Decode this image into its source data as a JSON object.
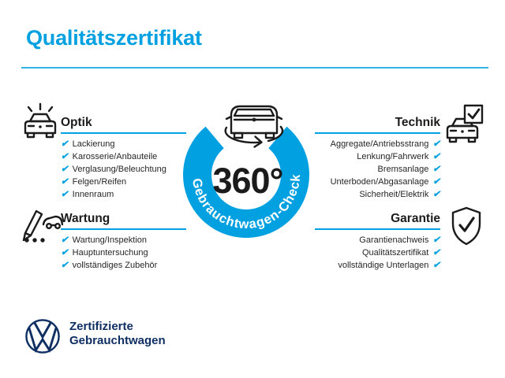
{
  "title": "Qualitätszertifikat",
  "check_glyph": "✔",
  "colors": {
    "accent": "#00A0E1",
    "navy": "#0F2F63",
    "ink": "#1B1B1B"
  },
  "center": {
    "value": "360°",
    "ring_label": "Gebrauchtwagen-Check"
  },
  "sections": [
    {
      "title": "Optik",
      "items": [
        "Lackierung",
        "Karosserie/Anbauteile",
        "Verglasung/Beleuchtung",
        "Felgen/Reifen",
        "Innenraum"
      ]
    },
    {
      "title": "Technik",
      "items": [
        "Aggregate/Antriebsstrang",
        "Lenkung/Fahrwerk",
        "Bremsanlage",
        "Unterboden/Abgasanlage",
        "Sicherheit/Elektrik"
      ]
    },
    {
      "title": "Wartung",
      "items": [
        "Wartung/Inspektion",
        "Hauptuntersuchung",
        "vollständiges Zubehör"
      ]
    },
    {
      "title": "Garantie",
      "items": [
        "Garantienachweis",
        "Qualitätszertifikat",
        "vollständige Unterlagen"
      ]
    }
  ],
  "footer": {
    "line1": "Zertifizierte",
    "line2": "Gebrauchtwagen"
  }
}
